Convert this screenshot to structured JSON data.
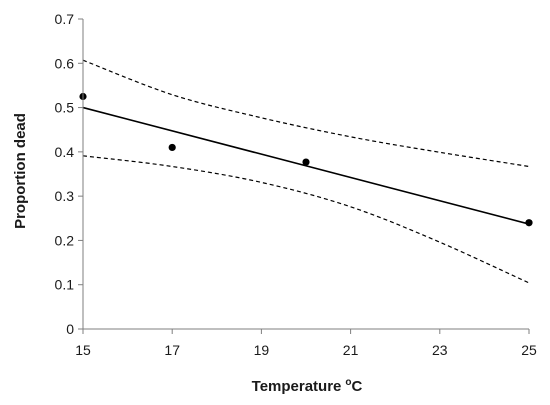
{
  "chart_data": {
    "type": "scatter",
    "title": "",
    "xlabel": "Temperature",
    "xlabel_superscript": "o",
    "xlabel_unit": "C",
    "ylabel": "Proportion dead",
    "xlim": [
      15,
      25
    ],
    "ylim": [
      0,
      0.7
    ],
    "xticks": [
      "15",
      "17",
      "19",
      "21",
      "23",
      "25"
    ],
    "yticks": [
      "0",
      "0.1",
      "0.2",
      "0.3",
      "0.4",
      "0.5",
      "0.6",
      "0.7"
    ],
    "grid": false,
    "legend": "none",
    "points": [
      {
        "x": 15,
        "y": 0.525
      },
      {
        "x": 17,
        "y": 0.41
      },
      {
        "x": 20,
        "y": 0.377
      },
      {
        "x": 25,
        "y": 0.24
      }
    ],
    "fit_line": {
      "x": [
        15,
        25
      ],
      "y": [
        0.5,
        0.237
      ]
    },
    "confidence_upper": {
      "x": [
        15,
        17,
        19,
        21,
        23,
        25
      ],
      "y": [
        0.607,
        0.529,
        0.477,
        0.434,
        0.399,
        0.367
      ]
    },
    "confidence_lower": {
      "x": [
        15,
        17,
        19,
        21,
        23,
        25
      ],
      "y": [
        0.391,
        0.367,
        0.331,
        0.276,
        0.196,
        0.104
      ]
    },
    "colors": {
      "points": "#000000",
      "fit_line": "#000000",
      "confidence": "#000000",
      "axes": "#7f7f7f"
    }
  }
}
